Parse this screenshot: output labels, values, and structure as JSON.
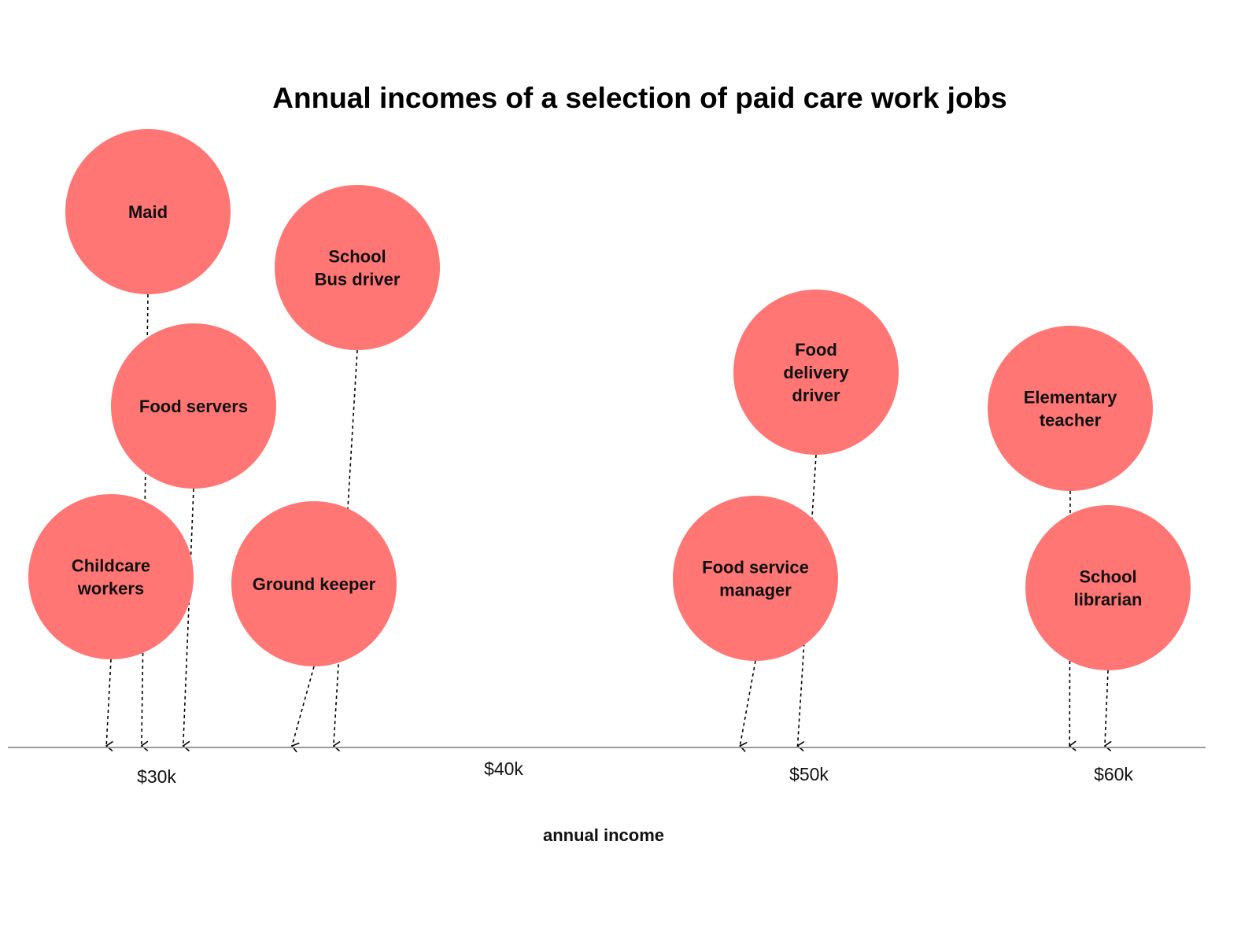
{
  "chart_data": {
    "type": "scatter",
    "title": "Annual incomes of a selection of paid care work jobs",
    "xlabel": "annual income",
    "ylabel": "",
    "xlim": [
      26000,
      62000
    ],
    "xticks": [
      {
        "value": 30000,
        "label": "$30k"
      },
      {
        "value": 40000,
        "label": "$40k"
      },
      {
        "value": 50000,
        "label": "$50k"
      },
      {
        "value": 60000,
        "label": "$60k"
      }
    ],
    "grid": false,
    "legend": "none",
    "bubble_color": "#ff7674",
    "axis_color": "#999999",
    "points": [
      {
        "label": "Maid",
        "x": 29800
      },
      {
        "label": "School\nBus driver",
        "x": 35800
      },
      {
        "label": "Food servers",
        "x": 31100
      },
      {
        "label": "Childcare\nworkers",
        "x": 28700
      },
      {
        "label": "Ground keeper",
        "x": 34500
      },
      {
        "label": "Food\ndelivery\ndriver",
        "x": 50300
      },
      {
        "label": "Food service\nmanager",
        "x": 48500
      },
      {
        "label": "Elementary\nteacher",
        "x": 58800
      },
      {
        "label": "School\nlibrarian",
        "x": 59900
      }
    ]
  }
}
